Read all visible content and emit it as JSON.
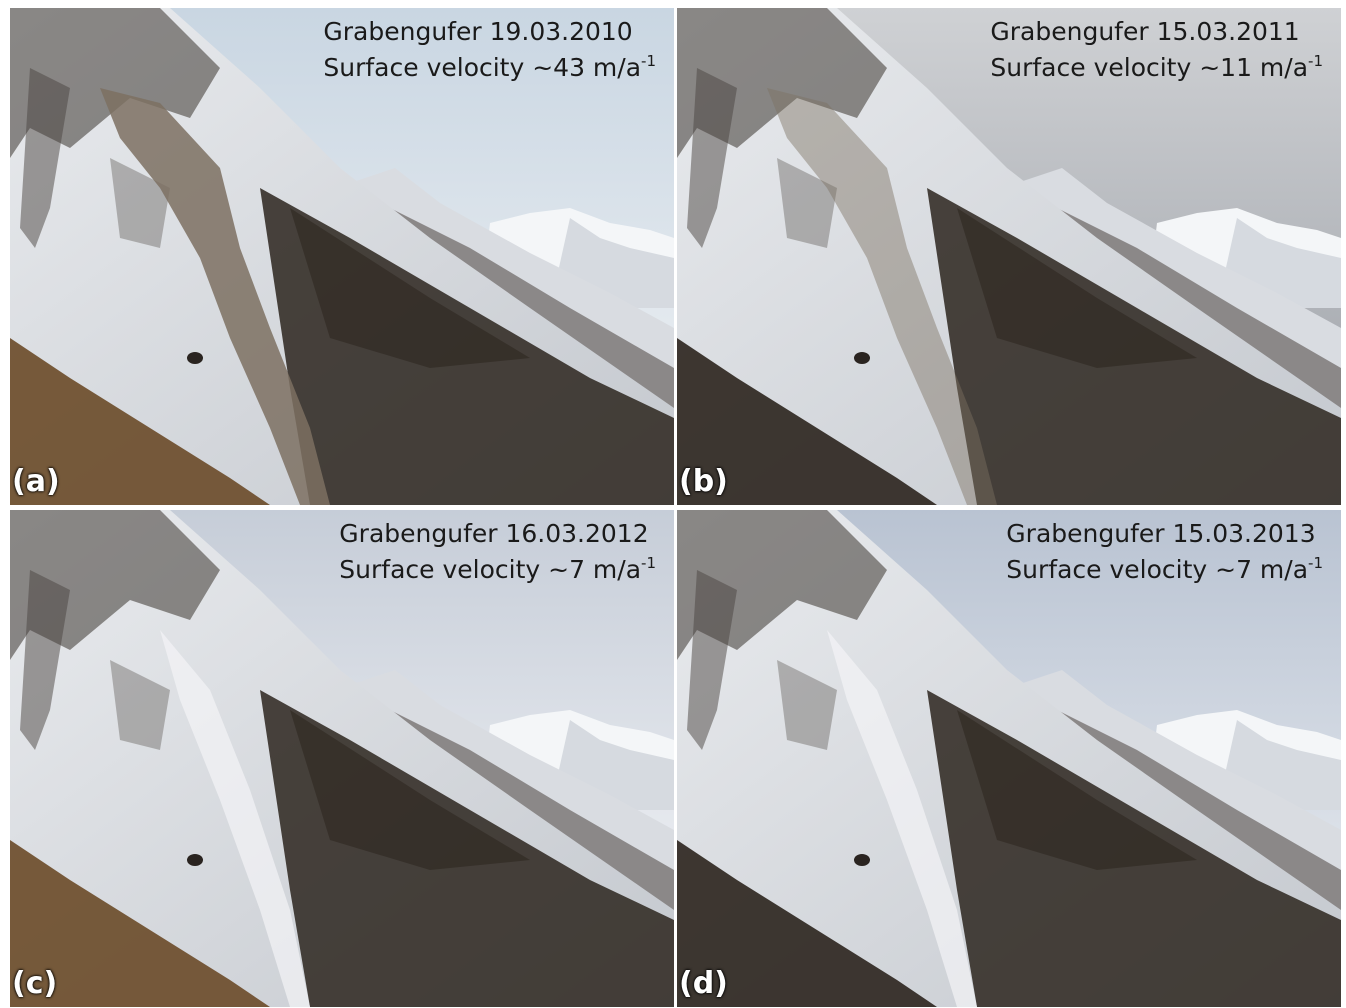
{
  "figure": {
    "panels": [
      {
        "id": "a",
        "letter": "(a)",
        "title": "Grabengufer 19.03.2010",
        "velocity_text": "Surface velocity ~43 m/a",
        "velocity_sup": "-1",
        "sky_top": "#c9d6e2",
        "sky_bottom": "#f2f4f6",
        "debris_visible": true
      },
      {
        "id": "b",
        "letter": "(b)",
        "title": "Grabengufer 15.03.2011",
        "velocity_text": "Surface velocity ~11 m/a",
        "velocity_sup": "-1",
        "sky_top": "#cfd1d4",
        "sky_bottom": "#9a9ea5",
        "debris_visible": true
      },
      {
        "id": "c",
        "letter": "(c)",
        "title": "Grabengufer 16.03.2012",
        "velocity_text": "Surface velocity ~7 m/a",
        "velocity_sup": "-1",
        "sky_top": "#c6cdd8",
        "sky_bottom": "#f7f8fa",
        "debris_visible": false
      },
      {
        "id": "d",
        "letter": "(d)",
        "title": "Grabengufer 15.03.2013",
        "velocity_text": "Surface velocity ~7 m/a",
        "velocity_sup": "-1",
        "sky_top": "#b9c3d2",
        "sky_bottom": "#edf0f4",
        "debris_visible": false
      }
    ],
    "colors": {
      "snow": "#e9ebee",
      "snow_shadow": "#c4c8ce",
      "rock": "#4a4440",
      "forest": "#2b241d",
      "larch": "#6a4a28",
      "debris": "#7c7062"
    }
  }
}
